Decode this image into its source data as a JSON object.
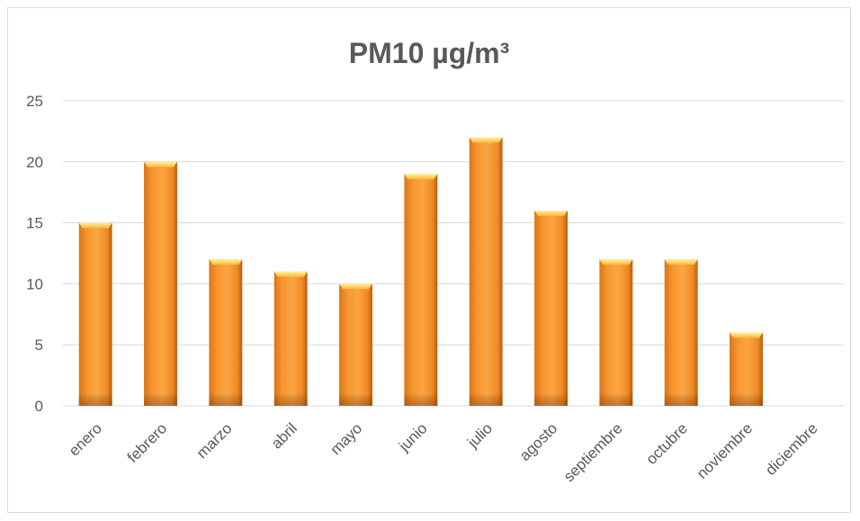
{
  "chart_data": {
    "type": "bar",
    "title": "PM10 µg/m³",
    "categories": [
      "enero",
      "febrero",
      "marzo",
      "abril",
      "mayo",
      "junio",
      "julio",
      "agosto",
      "septiembre",
      "octubre",
      "noviembre",
      "diciembre"
    ],
    "values": [
      15,
      20,
      12,
      11,
      10,
      19,
      22,
      16,
      12,
      12,
      6,
      0
    ],
    "ylim": [
      0,
      25
    ],
    "yticks": [
      "0",
      "5",
      "10",
      "15",
      "20",
      "25"
    ],
    "grid": true,
    "legend": "none",
    "bar_color": "#f7962e",
    "bar_top_color": "#fdd25a",
    "gridline_color": "#d9d9d9"
  }
}
